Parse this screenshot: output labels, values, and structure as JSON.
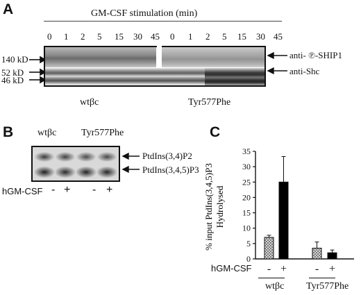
{
  "panel_a": {
    "letter": "A",
    "stimulation_title": "GM-CSF stimulation (min)",
    "timepoints": [
      "0",
      "1",
      "2",
      "5",
      "15",
      "30",
      "45"
    ],
    "mw_markers": [
      "140 kD",
      "52 kD",
      "46 kD"
    ],
    "band_labels": [
      "anti- ℗-SHIP1",
      "anti-Shc"
    ],
    "group_labels": [
      "wtβc",
      "Tyr577Phe"
    ]
  },
  "panel_b": {
    "letter": "B",
    "lane_group_labels": [
      "wtβc",
      "Tyr577Phe"
    ],
    "band_labels": [
      "PtdIns(3,4)P2",
      "PtdIns(3,4,5)P3"
    ],
    "treatment_label": "hGM-CSF",
    "treatment_signs": [
      "-",
      "+",
      "-",
      "+"
    ]
  },
  "panel_c": {
    "letter": "C",
    "treatment_label": "hGM-CSF",
    "chart_data": {
      "type": "bar",
      "ylabel_lines": [
        "% input PtdIns(3,4,5)P3",
        "Hydrolysed"
      ],
      "ylim": [
        0,
        35
      ],
      "yticks": [
        0,
        5,
        10,
        15,
        20,
        25,
        30,
        35
      ],
      "categories": [
        "-",
        "+",
        "-",
        "+"
      ],
      "groups": [
        "wtβc",
        "Tyr577Phe"
      ],
      "values": [
        7,
        25,
        3.5,
        2
      ],
      "errors": [
        0.7,
        8.3,
        2.0,
        0.9
      ],
      "bar_fills": [
        "#cfcfcf",
        "#000000",
        "#cfcfcf",
        "#000000"
      ],
      "grid": false,
      "legend": "none"
    }
  }
}
